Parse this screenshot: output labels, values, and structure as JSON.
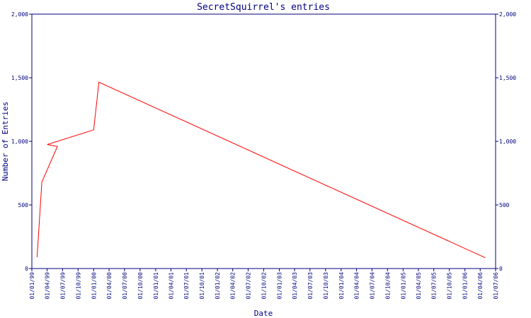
{
  "chart_data": {
    "type": "line",
    "title": "SecretSquirrel's entries",
    "xlabel": "Date",
    "ylabel": "Number of Entries",
    "ylim": [
      0,
      2000
    ],
    "y_ticks": [
      0,
      500,
      1000,
      1500,
      2000
    ],
    "y_tick_labels": [
      "0",
      "500",
      "1,000",
      "1,500",
      "2,000"
    ],
    "x_tick_labels": [
      "01/01/99",
      "01/04/99",
      "01/07/99",
      "01/10/99",
      "01/01/00",
      "01/04/00",
      "01/07/00",
      "01/10/00",
      "01/01/01",
      "01/04/01",
      "01/07/01",
      "01/10/01",
      "01/01/02",
      "01/04/02",
      "01/07/02",
      "01/10/02",
      "01/01/03",
      "01/04/03",
      "01/07/03",
      "01/10/03",
      "01/01/04",
      "01/04/04",
      "01/07/04",
      "01/10/04",
      "01/01/05",
      "01/04/05",
      "01/07/05",
      "01/10/05",
      "01/01/06",
      "01/04/06",
      "01/07/06"
    ],
    "grid": false,
    "series": [
      {
        "color": "#ff0000",
        "points": [
          {
            "x": "01/02/99",
            "y": 90
          },
          {
            "x": "01/03/99",
            "y": 680
          },
          {
            "x": "01/06/99",
            "y": 960
          },
          {
            "x": "02/04/99",
            "y": 975
          },
          {
            "x": "01/01/00",
            "y": 1090
          },
          {
            "x": "01/02/00",
            "y": 1465
          },
          {
            "x": "01/05/06",
            "y": 85
          }
        ]
      }
    ]
  },
  "colors": {
    "axis": "#000080",
    "line": "#ff0000"
  }
}
